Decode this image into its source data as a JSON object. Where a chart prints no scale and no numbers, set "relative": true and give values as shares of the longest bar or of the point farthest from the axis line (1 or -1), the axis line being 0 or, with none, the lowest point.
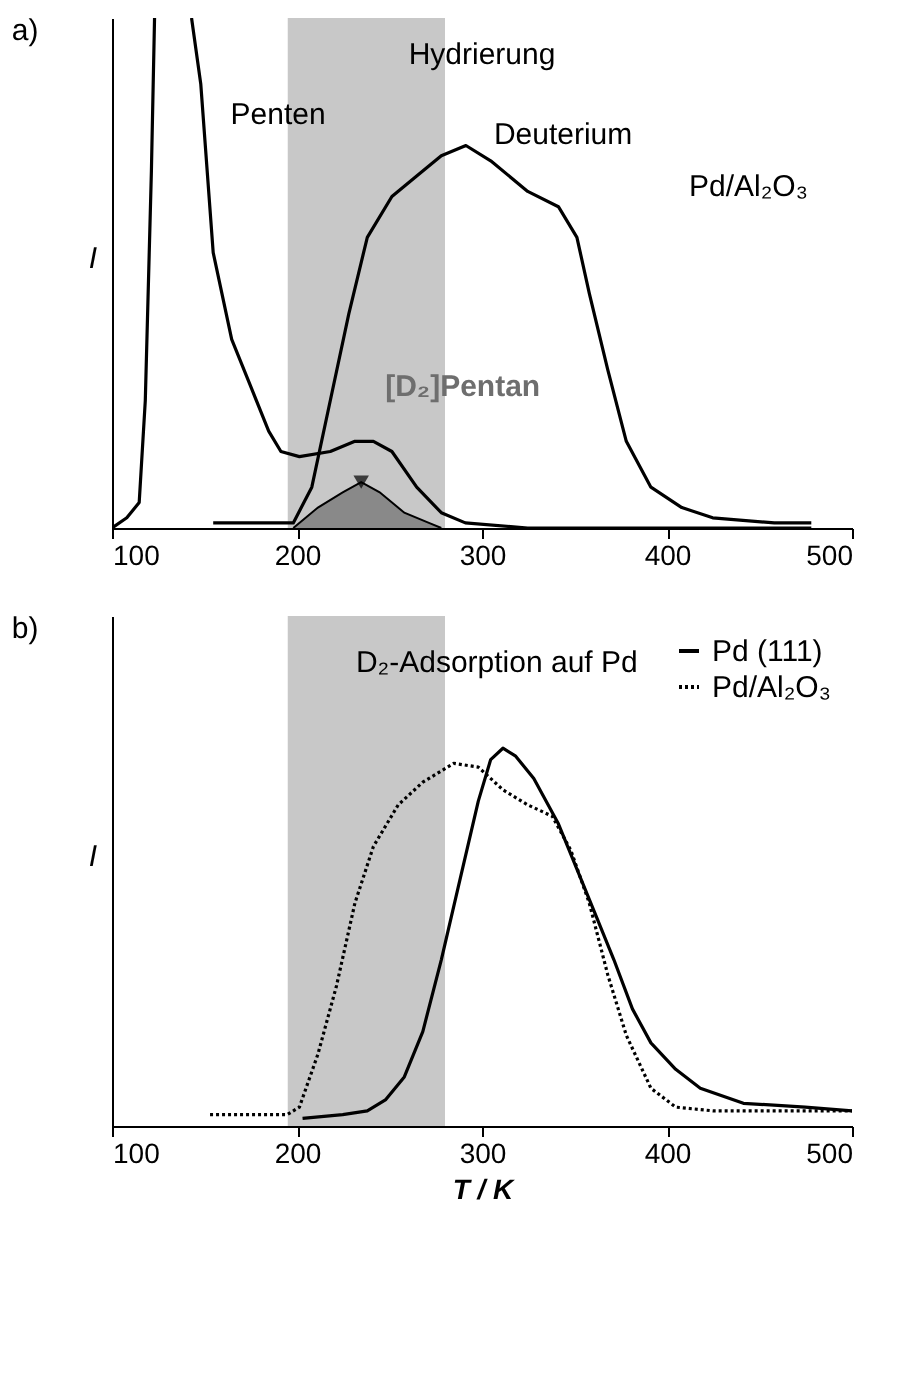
{
  "chart_data": [
    {
      "type": "line",
      "title": "a)",
      "ylabel": "I",
      "relative": true,
      "legend": false,
      "grid": false,
      "xlim": [
        100,
        500
      ],
      "xticks": [
        100,
        200,
        300,
        400,
        500
      ],
      "bands": [
        {
          "axis": "x",
          "from": 195,
          "to": 280,
          "color": "#c8c8c8"
        }
      ],
      "annotations": [
        "Hydrierung",
        "Pd/Al₂O₃"
      ],
      "series": [
        {
          "name": "Penten",
          "color": "#000000",
          "x": [
            100,
            108,
            114.7,
            118,
            121.3,
            123,
            130,
            143,
            148,
            154.7,
            164.7,
            174.7,
            184.7,
            191.3,
            201.3,
            218,
            231.3,
            241.3,
            251.3,
            264.7,
            278,
            291,
            324.7,
            478
          ],
          "values": [
            0,
            0.02,
            0.05,
            0.25,
            0.7,
            1.0,
            null,
            1.0,
            0.87,
            0.54,
            0.37,
            0.28,
            0.19,
            0.15,
            0.14,
            0.15,
            0.17,
            0.17,
            0.15,
            0.08,
            0.03,
            0.01,
            0,
            0
          ]
        },
        {
          "name": "Deuterium",
          "color": "#000000",
          "x": [
            154.7,
            198,
            208,
            218,
            228,
            238,
            251.3,
            264.7,
            278,
            291.3,
            304.7,
            324.7,
            341.3,
            351.3,
            358,
            368,
            378,
            391.3,
            408,
            424.7,
            458,
            478
          ],
          "values": [
            0.01,
            0.01,
            0.08,
            0.25,
            0.42,
            0.57,
            0.65,
            0.69,
            0.73,
            0.75,
            0.72,
            0.66,
            0.63,
            0.57,
            0.46,
            0.31,
            0.17,
            0.08,
            0.04,
            0.02,
            0.01,
            0.01
          ]
        },
        {
          "name": "[D₂]Pentan",
          "type": "area",
          "color": "#6e6e6e",
          "x": [
            198,
            211.3,
            224.7,
            234.7,
            244.7,
            258,
            271.3,
            278
          ],
          "values": [
            0,
            0.04,
            0.07,
            0.09,
            0.07,
            0.03,
            0.01,
            0
          ]
        }
      ]
    },
    {
      "type": "line",
      "title": "b)",
      "ylabel": "I",
      "xlabel": "T / K",
      "relative": true,
      "legend": "top right",
      "grid": false,
      "xlim": [
        100,
        500
      ],
      "xticks": [
        100,
        200,
        300,
        400,
        500
      ],
      "bands": [
        {
          "axis": "x",
          "from": 195,
          "to": 280,
          "color": "#c8c8c8"
        }
      ],
      "annotations": [
        "D₂-Adsorption auf Pd"
      ],
      "series": [
        {
          "name": "Pd (111)",
          "color": "#000000",
          "line_style": "solid",
          "x": [
            203,
            224.7,
            238,
            248,
            258,
            268,
            278,
            288,
            298,
            304.7,
            311.3,
            318,
            328,
            341.3,
            351.3,
            361.3,
            371.3,
            381.3,
            391.3,
            404.7,
            418,
            441.3,
            474.7,
            500
          ],
          "values": [
            0.02,
            0.03,
            0.04,
            0.07,
            0.13,
            0.25,
            0.44,
            0.65,
            0.86,
            0.97,
            1.0,
            0.98,
            0.92,
            0.8,
            0.68,
            0.56,
            0.44,
            0.31,
            0.22,
            0.15,
            0.1,
            0.06,
            0.05,
            0.04
          ]
        },
        {
          "name": "Pd/Al₂O₃",
          "color": "#000000",
          "line_style": "dotted",
          "x": [
            153,
            174.7,
            194.7,
            201.3,
            211.3,
            221.3,
            231.3,
            241.3,
            254.7,
            268,
            284.7,
            298,
            311.3,
            324.7,
            338,
            348,
            358,
            368,
            378,
            391.3,
            404.7,
            425,
            500
          ],
          "values": [
            0.03,
            0.03,
            0.03,
            0.05,
            0.19,
            0.37,
            0.59,
            0.74,
            0.85,
            0.91,
            0.96,
            0.95,
            0.89,
            0.85,
            0.82,
            0.73,
            0.59,
            0.4,
            0.24,
            0.1,
            0.05,
            0.04,
            0.04
          ]
        }
      ]
    }
  ]
}
